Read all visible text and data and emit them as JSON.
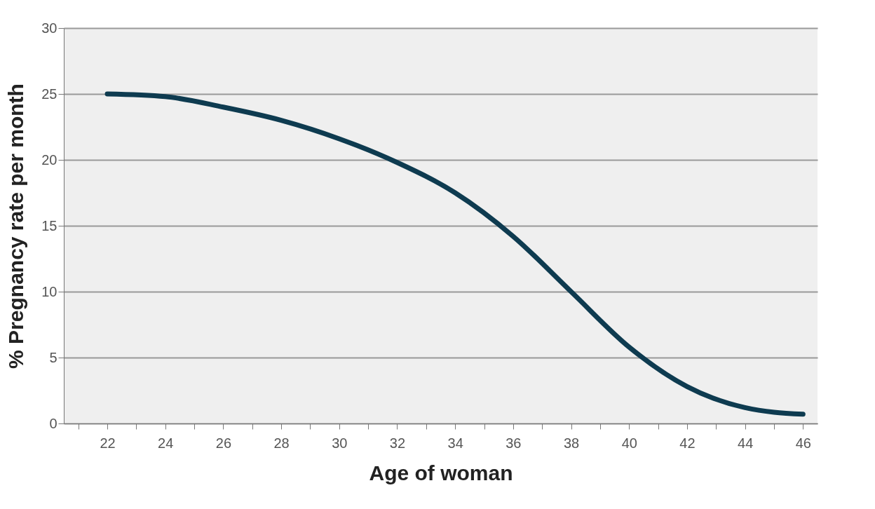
{
  "chart_data": {
    "type": "line",
    "xlabel": "Age of woman",
    "ylabel": "% Pregnancy rate per month",
    "x": [
      22,
      24,
      26,
      28,
      30,
      32,
      34,
      36,
      38,
      40,
      42,
      44,
      46
    ],
    "series": [
      {
        "color": "#0e3b50",
        "values": [
          25,
          24.8,
          24,
          23,
          21.6,
          19.8,
          17.5,
          14.2,
          10,
          5.8,
          2.8,
          1.2,
          0.7
        ]
      }
    ],
    "xlim": [
      20.5,
      46.5
    ],
    "xticks": [
      {
        "value": 21,
        "label": null
      },
      22,
      {
        "value": 23,
        "label": null
      },
      24,
      {
        "value": 25,
        "label": null
      },
      26,
      {
        "value": 27,
        "label": null
      },
      28,
      {
        "value": 29,
        "label": null
      },
      30,
      {
        "value": 31,
        "label": null
      },
      32,
      {
        "value": 33,
        "label": null
      },
      34,
      {
        "value": 35,
        "label": null
      },
      36,
      {
        "value": 37,
        "label": null
      },
      38,
      {
        "value": 39,
        "label": null
      },
      40,
      {
        "value": 41,
        "label": null
      },
      42,
      {
        "value": 43,
        "label": null
      },
      44,
      {
        "value": 45,
        "label": null
      },
      46
    ],
    "ylim": [
      0,
      30
    ],
    "yticks": [
      0,
      5,
      10,
      15,
      20,
      25,
      30
    ],
    "grid": "y",
    "marker": "none",
    "line_style": "solid"
  }
}
